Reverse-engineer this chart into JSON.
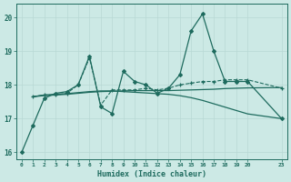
{
  "xlabel": "Humidex (Indice chaleur)",
  "xlim": [
    -0.5,
    23.5
  ],
  "ylim": [
    15.8,
    20.4
  ],
  "yticks": [
    16,
    17,
    18,
    19,
    20
  ],
  "xticks": [
    0,
    1,
    2,
    3,
    4,
    5,
    6,
    7,
    8,
    9,
    10,
    11,
    12,
    13,
    14,
    15,
    16,
    17,
    18,
    19,
    20,
    23
  ],
  "background_color": "#cce9e5",
  "line_color": "#1e6b5e",
  "grid_color": "#b8d8d4",
  "series": [
    {
      "x": [
        0,
        1,
        2,
        3,
        4,
        5,
        6,
        7,
        8,
        9,
        10,
        11,
        12,
        13,
        14,
        15,
        16,
        17,
        18,
        19,
        20,
        23
      ],
      "y": [
        16.0,
        16.8,
        17.6,
        17.75,
        17.8,
        18.0,
        18.85,
        17.35,
        17.15,
        18.4,
        18.1,
        18.0,
        17.75,
        17.9,
        18.3,
        19.6,
        20.1,
        19.0,
        18.1,
        18.1,
        18.1,
        17.0
      ],
      "marker": "D",
      "markersize": 2.0,
      "linewidth": 0.9,
      "linestyle": "-"
    },
    {
      "x": [
        1,
        2,
        3,
        4,
        5,
        6,
        7,
        8,
        9,
        10,
        11,
        12,
        13,
        14,
        15,
        16,
        17,
        18,
        19,
        20,
        23
      ],
      "y": [
        17.65,
        17.7,
        17.7,
        17.75,
        18.0,
        18.8,
        17.4,
        17.85,
        17.85,
        17.85,
        17.9,
        17.85,
        17.9,
        18.0,
        18.05,
        18.1,
        18.1,
        18.15,
        18.15,
        18.15,
        17.9
      ],
      "marker": "+",
      "markersize": 3.5,
      "linewidth": 0.8,
      "linestyle": "--"
    },
    {
      "x": [
        1,
        2,
        3,
        4,
        5,
        6,
        7,
        8,
        9,
        10,
        11,
        12,
        13,
        14,
        15,
        16,
        17,
        18,
        19,
        20,
        23
      ],
      "y": [
        17.65,
        17.7,
        17.72,
        17.74,
        17.77,
        17.8,
        17.82,
        17.82,
        17.8,
        17.78,
        17.76,
        17.74,
        17.72,
        17.68,
        17.62,
        17.54,
        17.44,
        17.34,
        17.24,
        17.14,
        17.0
      ],
      "marker": null,
      "markersize": 0,
      "linewidth": 0.9,
      "linestyle": "-"
    },
    {
      "x": [
        1,
        2,
        3,
        4,
        5,
        6,
        7,
        8,
        9,
        10,
        11,
        12,
        13,
        14,
        15,
        16,
        17,
        18,
        19,
        20,
        23
      ],
      "y": [
        17.65,
        17.68,
        17.7,
        17.72,
        17.75,
        17.78,
        17.8,
        17.81,
        17.82,
        17.83,
        17.83,
        17.83,
        17.83,
        17.84,
        17.85,
        17.86,
        17.87,
        17.89,
        17.9,
        17.91,
        17.92
      ],
      "marker": null,
      "markersize": 0,
      "linewidth": 0.9,
      "linestyle": "-"
    }
  ]
}
